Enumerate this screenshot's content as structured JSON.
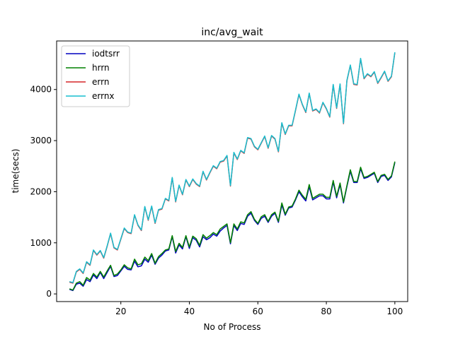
{
  "chart_data": {
    "type": "line",
    "title": "inc/avg_wait",
    "xlabel": "No of Process",
    "ylabel": "time(secs)",
    "xlim": [
      1.25,
      103.75
    ],
    "ylim": [
      -150,
      4950
    ],
    "xticks": [
      20,
      40,
      60,
      80,
      100
    ],
    "yticks": [
      0,
      1000,
      2000,
      3000,
      4000
    ],
    "grid": false,
    "legend_position": "top-left",
    "x": [
      5,
      6,
      7,
      8,
      9,
      10,
      11,
      12,
      13,
      14,
      15,
      16,
      17,
      18,
      19,
      20,
      21,
      22,
      23,
      24,
      25,
      26,
      27,
      28,
      29,
      30,
      31,
      32,
      33,
      34,
      35,
      36,
      37,
      38,
      39,
      40,
      41,
      42,
      43,
      44,
      45,
      46,
      47,
      48,
      49,
      50,
      51,
      52,
      53,
      54,
      55,
      56,
      57,
      58,
      59,
      60,
      61,
      62,
      63,
      64,
      65,
      66,
      67,
      68,
      69,
      70,
      71,
      72,
      73,
      74,
      75,
      76,
      77,
      78,
      79,
      80,
      81,
      82,
      83,
      84,
      85,
      86,
      87,
      88,
      89,
      90,
      91,
      92,
      93,
      94,
      95,
      96,
      97,
      98,
      99,
      100
    ],
    "series": [
      {
        "name": "iodtsrr",
        "color": "#0000bf",
        "values": [
          90,
          65,
          190,
          210,
          150,
          280,
          240,
          370,
          300,
          420,
          300,
          420,
          540,
          340,
          360,
          450,
          540,
          480,
          470,
          640,
          530,
          550,
          680,
          620,
          760,
          580,
          700,
          760,
          840,
          860,
          1120,
          800,
          960,
          880,
          1120,
          890,
          1100,
          1050,
          920,
          1120,
          1060,
          1100,
          1170,
          1130,
          1230,
          1290,
          1340,
          980,
          1340,
          1240,
          1380,
          1360,
          1520,
          1580,
          1440,
          1360,
          1480,
          1520,
          1400,
          1520,
          1580,
          1400,
          1740,
          1540,
          1680,
          1700,
          1840,
          2000,
          1900,
          1820,
          2100,
          1840,
          1880,
          1920,
          1920,
          1860,
          1860,
          2190,
          1880,
          2140,
          1780,
          2100,
          2400,
          2180,
          2180,
          2450,
          2260,
          2280,
          2320,
          2360,
          2180,
          2300,
          2320,
          2220,
          2290,
          2570
        ]
      },
      {
        "name": "hrrn",
        "color": "#008000",
        "values": [
          100,
          75,
          210,
          240,
          170,
          320,
          270,
          400,
          330,
          440,
          330,
          450,
          560,
          360,
          390,
          470,
          570,
          510,
          490,
          680,
          570,
          590,
          720,
          650,
          790,
          600,
          730,
          790,
          860,
          880,
          1140,
          830,
          990,
          910,
          1140,
          920,
          1130,
          1080,
          950,
          1160,
          1090,
          1140,
          1200,
          1160,
          1270,
          1320,
          1370,
          1000,
          1370,
          1270,
          1410,
          1390,
          1550,
          1610,
          1460,
          1380,
          1510,
          1550,
          1420,
          1550,
          1600,
          1420,
          1780,
          1560,
          1700,
          1720,
          1860,
          2030,
          1930,
          1850,
          2140,
          1870,
          1910,
          1950,
          1950,
          1890,
          1890,
          2220,
          1910,
          2170,
          1800,
          2120,
          2430,
          2200,
          2200,
          2480,
          2280,
          2300,
          2340,
          2380,
          2200,
          2320,
          2340,
          2240,
          2310,
          2590
        ]
      },
      {
        "name": "errn",
        "color": "#d62728",
        "values": [
          230,
          210,
          430,
          480,
          400,
          620,
          560,
          850,
          760,
          840,
          700,
          930,
          1180,
          900,
          860,
          1070,
          1280,
          1200,
          1180,
          1540,
          1340,
          1240,
          1700,
          1440,
          1710,
          1380,
          1640,
          1660,
          1860,
          1820,
          2270,
          1800,
          2120,
          1940,
          2230,
          2100,
          2240,
          2150,
          2100,
          2390,
          2230,
          2370,
          2500,
          2450,
          2580,
          2600,
          2700,
          2110,
          2760,
          2630,
          2800,
          2750,
          3050,
          3030,
          2880,
          2820,
          2950,
          3080,
          2850,
          3090,
          3030,
          2780,
          3340,
          3120,
          3290,
          3290,
          3590,
          3900,
          3700,
          3550,
          3920,
          3580,
          3610,
          3540,
          3740,
          3620,
          3460,
          4090,
          3630,
          4100,
          3330,
          4170,
          4470,
          4100,
          4090,
          4600,
          4210,
          4300,
          4250,
          4340,
          4120,
          4230,
          4350,
          4160,
          4250,
          4720
        ]
      },
      {
        "name": "errnx",
        "color": "#17becf",
        "values": [
          240,
          220,
          440,
          490,
          410,
          630,
          570,
          860,
          770,
          850,
          710,
          940,
          1190,
          910,
          870,
          1080,
          1290,
          1210,
          1190,
          1550,
          1350,
          1250,
          1710,
          1450,
          1720,
          1390,
          1650,
          1670,
          1870,
          1830,
          2280,
          1810,
          2130,
          1950,
          2240,
          2110,
          2250,
          2160,
          2110,
          2400,
          2240,
          2380,
          2510,
          2460,
          2590,
          2610,
          2710,
          2120,
          2770,
          2640,
          2810,
          2760,
          3060,
          3040,
          2890,
          2830,
          2960,
          3090,
          2860,
          3100,
          3040,
          2790,
          3350,
          3130,
          3300,
          3300,
          3600,
          3910,
          3710,
          3560,
          3930,
          3590,
          3620,
          3550,
          3750,
          3630,
          3470,
          4100,
          3640,
          4110,
          3340,
          4180,
          4480,
          4110,
          4100,
          4610,
          4220,
          4310,
          4260,
          4350,
          4130,
          4240,
          4360,
          4170,
          4260,
          4730
        ]
      }
    ]
  }
}
